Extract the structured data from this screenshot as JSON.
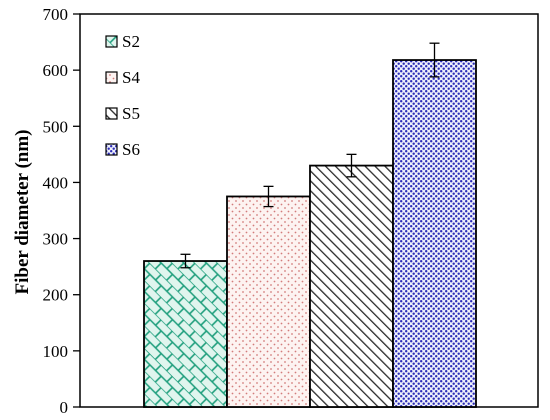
{
  "chart_data": {
    "type": "bar",
    "title": "",
    "xlabel": "",
    "ylabel": "Fiber diameter (nm)",
    "ylim": [
      0,
      700
    ],
    "yticks": [
      0,
      100,
      200,
      300,
      400,
      500,
      600,
      700
    ],
    "grid": false,
    "legend_position": "top-left",
    "categories": [
      "S2",
      "S4",
      "S5",
      "S6"
    ],
    "values": [
      260,
      375,
      430,
      618
    ],
    "errors": [
      12,
      18,
      20,
      30
    ],
    "series": [
      {
        "name": "S2",
        "pattern": "brick",
        "color": "#1e9e7c",
        "fill": "#e0f5ee"
      },
      {
        "name": "S4",
        "pattern": "dots-sparse",
        "color": "#d27c7c",
        "fill": "#fdf3f1"
      },
      {
        "name": "S5",
        "pattern": "diagonal",
        "color": "#2b2b2b",
        "fill": "#ffffff"
      },
      {
        "name": "S6",
        "pattern": "dots-dense",
        "color": "#2b2bb8",
        "fill": "#eef0fb"
      }
    ]
  }
}
